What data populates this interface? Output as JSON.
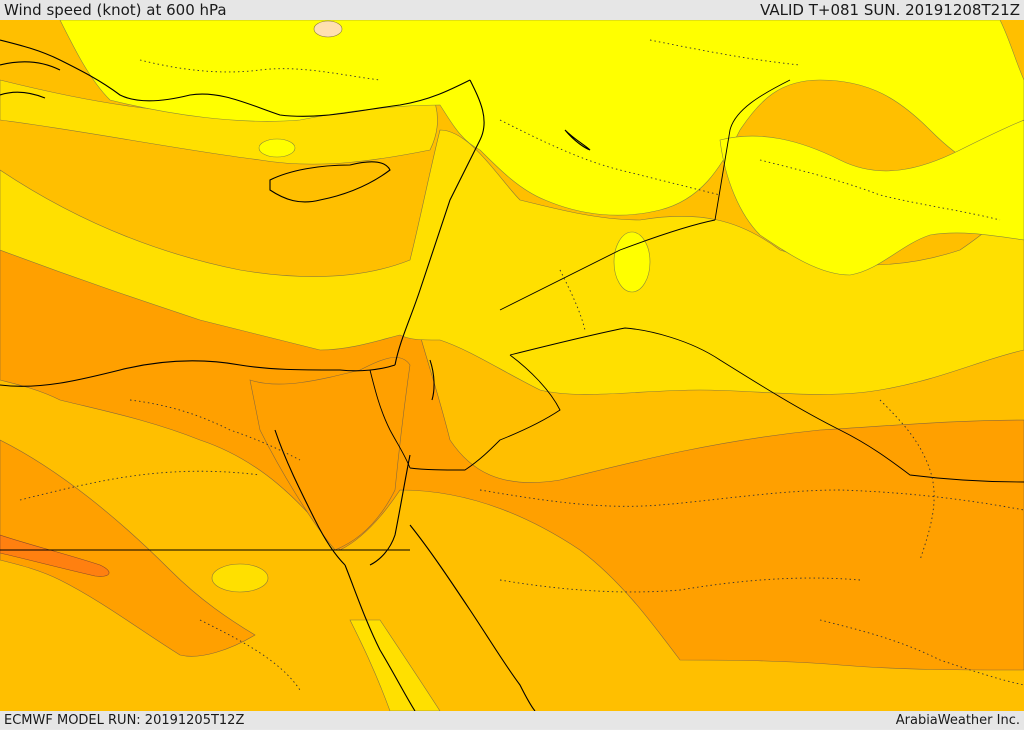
{
  "header": {
    "title": "Wind speed (knot) at 600 hPa",
    "valid_time": "VALID T+081 SUN. 20191208T21Z"
  },
  "footer": {
    "model_run": "ECMWF MODEL RUN: 20191205T12Z",
    "credit": "ArabiaWeather Inc."
  },
  "map": {
    "variable": "wind speed",
    "level": "600 hPa",
    "units": "knot",
    "colors": {
      "very_low": "#ffff00",
      "low": "#ffe000",
      "moderate": "#ffbf00",
      "high": "#ffa000",
      "very_high": "#ff8010",
      "isolated_min": "#ffe0b0",
      "coastline": "#000000",
      "border": "#000000"
    }
  }
}
